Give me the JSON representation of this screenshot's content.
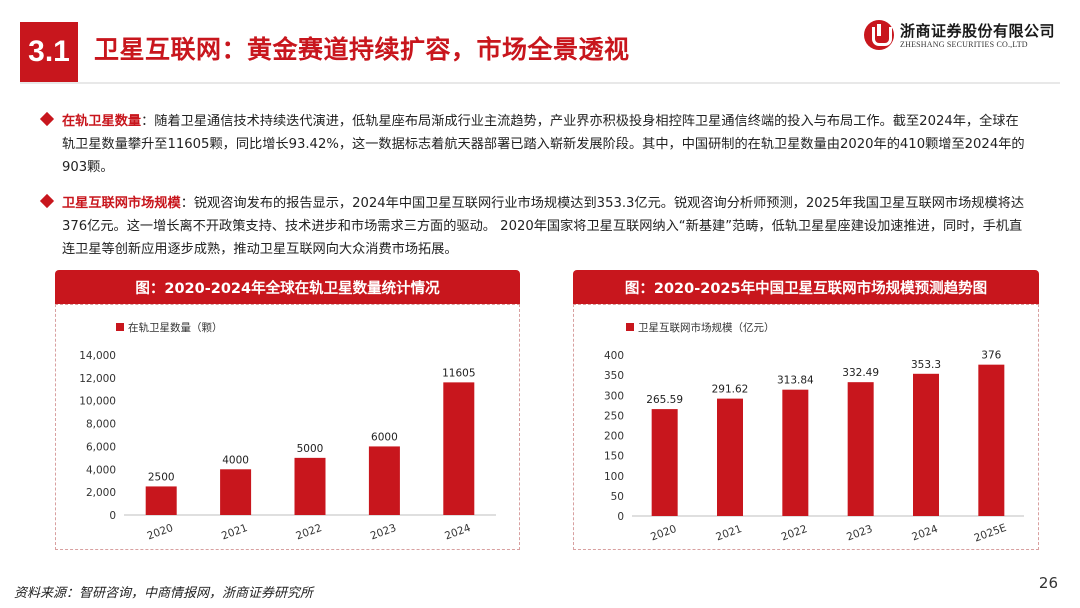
{
  "header": {
    "section_number": "3.1",
    "title": "卫星互联网：黄金赛道持续扩容，市场全景透视",
    "logo_cn": "浙商证券股份有限公司",
    "logo_en": "ZHESHANG SECURITIES CO.,LTD"
  },
  "paragraphs": [
    {
      "lead": "在轨卫星数量",
      "text": "：随着卫星通信技术持续迭代演进，低轨星座布局渐成行业主流趋势，产业界亦积极投身相控阵卫星通信终端的投入与布局工作。截至2024年，全球在轨卫星数量攀升至11605颗，同比增长93.42%，这一数据标志着航天器部署已踏入崭新发展阶段。其中，中国研制的在轨卫星数量由2020年的410颗增至2024年的903颗。"
    },
    {
      "lead": "卫星互联网市场规模",
      "text": "：锐观咨询发布的报告显示，2024年中国卫星互联网行业市场规模达到353.3亿元。锐观咨询分析师预测，2025年我国卫星互联网市场规模将达376亿元。这一增长离不开政策支持、技术进步和市场需求三方面的驱动。 2020年国家将卫星互联网纳入“新基建”范畴，低轨卫星星座建设加速推进，同时，手机直连卫星等创新应用逐步成熟，推动卫星互联网向大众消费市场拓展。"
    }
  ],
  "chart_data": [
    {
      "type": "bar",
      "panel_title": "图：2020-2024年全球在轨卫星数量统计情况",
      "categories": [
        "2020",
        "2021",
        "2022",
        "2023",
        "2024"
      ],
      "series": [
        {
          "name": "在轨卫星数量（颗）",
          "values": [
            2500,
            4000,
            5000,
            6000,
            11605
          ]
        }
      ],
      "data_labels": [
        "2500",
        "4000",
        "5000",
        "6000",
        "11605"
      ],
      "ylim": [
        0,
        14000
      ],
      "yticks": [
        0,
        2000,
        4000,
        6000,
        8000,
        10000,
        12000,
        14000
      ],
      "ytick_labels": [
        "0",
        "2,000",
        "4,000",
        "6,000",
        "8,000",
        "10,000",
        "12,000",
        "14,000"
      ],
      "legend": "top-left",
      "grid": false,
      "color": "#c8161d"
    },
    {
      "type": "bar",
      "panel_title": "图：2020-2025年中国卫星互联网市场规模预测趋势图",
      "categories": [
        "2020",
        "2021",
        "2022",
        "2023",
        "2024",
        "2025E"
      ],
      "series": [
        {
          "name": "卫星互联网市场规模（亿元）",
          "values": [
            265.59,
            291.62,
            313.84,
            332.49,
            353.3,
            376
          ]
        }
      ],
      "data_labels": [
        "265.59",
        "291.62",
        "313.84",
        "332.49",
        "353.3",
        "376"
      ],
      "ylim": [
        0,
        400
      ],
      "yticks": [
        0,
        50,
        100,
        150,
        200,
        250,
        300,
        350,
        400
      ],
      "ytick_labels": [
        "0",
        "50",
        "100",
        "150",
        "200",
        "250",
        "300",
        "350",
        "400"
      ],
      "legend": "top-left",
      "grid": false,
      "color": "#c8161d"
    }
  ],
  "footer": {
    "source": "资料来源：智研咨询，中商情报网，浙商证券研究所",
    "page_number": "26"
  }
}
